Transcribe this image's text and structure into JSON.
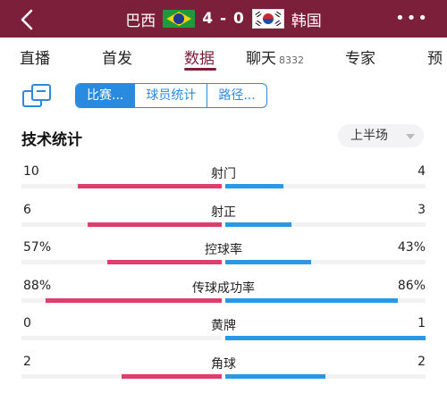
{
  "header": {
    "home_team": "巴西",
    "score": "4 - 0",
    "away_team": "韩国",
    "bg_color": "#7b1f3a",
    "icons": [
      "back-arrow-icon",
      "brazil-flag-icon",
      "korea-flag-icon",
      "more-dots-icon"
    ]
  },
  "tabs": [
    {
      "label": "直播"
    },
    {
      "label": "首发"
    },
    {
      "label": "数据",
      "active": true
    },
    {
      "label": "聊天",
      "badge": "8332"
    },
    {
      "label": "专家"
    },
    {
      "label": "预"
    }
  ],
  "toolbar": {
    "segments": [
      "比赛...",
      "球员统计",
      "路径..."
    ],
    "selected_segment": "比赛...",
    "accent_color": "#2a8ae0"
  },
  "section": {
    "title": "技术统计",
    "period_selector": "上半场"
  },
  "stats": [
    {
      "name": "射门",
      "left_value": "10",
      "right_value": "4",
      "left_fraction": 0.72,
      "right_fraction": 0.29
    },
    {
      "name": "射正",
      "left_value": "6",
      "right_value": "3",
      "left_fraction": 0.67,
      "right_fraction": 0.33
    },
    {
      "name": "控球率",
      "left_value": "57%",
      "right_value": "43%",
      "left_fraction": 0.57,
      "right_fraction": 0.43
    },
    {
      "name": "传球成功率",
      "left_value": "88%",
      "right_value": "86%",
      "left_fraction": 0.88,
      "right_fraction": 0.86
    },
    {
      "name": "黄牌",
      "left_value": "0",
      "right_value": "1",
      "left_fraction": 0.0,
      "right_fraction": 1.0
    },
    {
      "name": "角球",
      "left_value": "2",
      "right_value": "2",
      "left_fraction": 0.5,
      "right_fraction": 0.5
    }
  ],
  "colors": {
    "home_bar": "#e23c6c",
    "away_bar": "#2b98e6"
  }
}
